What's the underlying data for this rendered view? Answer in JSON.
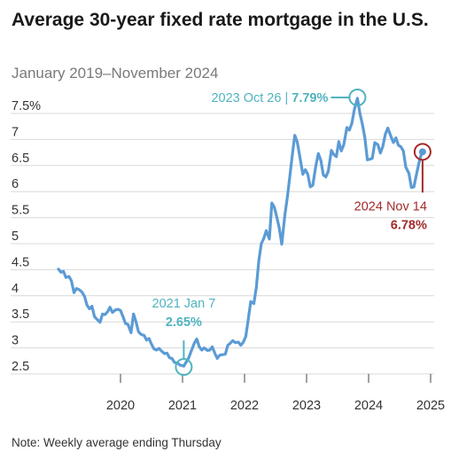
{
  "chart_data": {
    "type": "line",
    "title": "Average 30-year fixed rate mortgage in the U.S.",
    "subtitle": "January 2019–November 2024",
    "note": "Note: Weekly average ending Thursday",
    "y_ticks": [
      "7.5%",
      "7",
      "6.5",
      "6",
      "5.5",
      "5",
      "4.5",
      "4",
      "3.5",
      "3",
      "2.5"
    ],
    "y_tick_values": [
      7.5,
      7,
      6.5,
      6,
      5.5,
      5,
      4.5,
      4,
      3.5,
      3,
      2.5
    ],
    "x_ticks": [
      "2020",
      "2021",
      "2022",
      "2023",
      "2024",
      "2025"
    ],
    "x_tick_values": [
      2020,
      2021,
      2022,
      2023,
      2024,
      2025
    ],
    "xlim": [
      2019.0,
      2025.0
    ],
    "ylim": [
      2.5,
      7.6
    ],
    "grid": true,
    "colors": {
      "line": "#5b9bd5",
      "low_high": "#4fb3bf",
      "latest": "#a52a2a",
      "grid": "#d9d9d9"
    },
    "annotations": {
      "high": {
        "date": "2023 Oct 26",
        "sep": " | ",
        "value": "7.79%",
        "x": 2023.82,
        "y": 7.79
      },
      "low": {
        "date": "2021 Jan 7",
        "value": "2.65%",
        "x": 2021.02,
        "y": 2.65
      },
      "latest": {
        "date": "2024 Nov 14",
        "value": "6.78%",
        "x": 2024.87,
        "y": 6.78
      }
    },
    "series": [
      {
        "values": [
          [
            2019.0,
            4.51
          ],
          [
            2019.04,
            4.45
          ],
          [
            2019.08,
            4.47
          ],
          [
            2019.12,
            4.35
          ],
          [
            2019.17,
            4.37
          ],
          [
            2019.21,
            4.28
          ],
          [
            2019.25,
            4.06
          ],
          [
            2019.29,
            4.14
          ],
          [
            2019.33,
            4.12
          ],
          [
            2019.38,
            4.07
          ],
          [
            2019.42,
            3.99
          ],
          [
            2019.46,
            3.82
          ],
          [
            2019.5,
            3.75
          ],
          [
            2019.54,
            3.8
          ],
          [
            2019.58,
            3.6
          ],
          [
            2019.62,
            3.55
          ],
          [
            2019.67,
            3.49
          ],
          [
            2019.71,
            3.65
          ],
          [
            2019.75,
            3.64
          ],
          [
            2019.79,
            3.69
          ],
          [
            2019.83,
            3.78
          ],
          [
            2019.87,
            3.68
          ],
          [
            2019.92,
            3.73
          ],
          [
            2019.96,
            3.74
          ],
          [
            2020.0,
            3.72
          ],
          [
            2020.04,
            3.6
          ],
          [
            2020.08,
            3.47
          ],
          [
            2020.12,
            3.45
          ],
          [
            2020.17,
            3.29
          ],
          [
            2020.21,
            3.65
          ],
          [
            2020.25,
            3.5
          ],
          [
            2020.29,
            3.31
          ],
          [
            2020.33,
            3.26
          ],
          [
            2020.38,
            3.24
          ],
          [
            2020.42,
            3.15
          ],
          [
            2020.46,
            3.18
          ],
          [
            2020.5,
            3.07
          ],
          [
            2020.54,
            2.98
          ],
          [
            2020.58,
            2.96
          ],
          [
            2020.62,
            2.99
          ],
          [
            2020.67,
            2.93
          ],
          [
            2020.71,
            2.89
          ],
          [
            2020.75,
            2.9
          ],
          [
            2020.79,
            2.81
          ],
          [
            2020.83,
            2.8
          ],
          [
            2020.87,
            2.72
          ],
          [
            2020.92,
            2.71
          ],
          [
            2020.96,
            2.67
          ],
          [
            2021.02,
            2.65
          ],
          [
            2021.06,
            2.73
          ],
          [
            2021.1,
            2.81
          ],
          [
            2021.15,
            2.97
          ],
          [
            2021.19,
            3.09
          ],
          [
            2021.23,
            3.17
          ],
          [
            2021.27,
            3.02
          ],
          [
            2021.31,
            2.96
          ],
          [
            2021.35,
            3.0
          ],
          [
            2021.4,
            2.95
          ],
          [
            2021.44,
            2.96
          ],
          [
            2021.48,
            3.02
          ],
          [
            2021.52,
            2.9
          ],
          [
            2021.56,
            2.8
          ],
          [
            2021.6,
            2.86
          ],
          [
            2021.65,
            2.87
          ],
          [
            2021.69,
            2.88
          ],
          [
            2021.73,
            3.05
          ],
          [
            2021.77,
            3.09
          ],
          [
            2021.81,
            3.14
          ],
          [
            2021.85,
            3.1
          ],
          [
            2021.9,
            3.11
          ],
          [
            2021.94,
            3.05
          ],
          [
            2021.98,
            3.11
          ],
          [
            2022.02,
            3.22
          ],
          [
            2022.06,
            3.55
          ],
          [
            2022.1,
            3.89
          ],
          [
            2022.15,
            3.85
          ],
          [
            2022.19,
            4.16
          ],
          [
            2022.23,
            4.67
          ],
          [
            2022.27,
            5.0
          ],
          [
            2022.31,
            5.1
          ],
          [
            2022.35,
            5.25
          ],
          [
            2022.4,
            5.09
          ],
          [
            2022.44,
            5.78
          ],
          [
            2022.48,
            5.7
          ],
          [
            2022.52,
            5.51
          ],
          [
            2022.56,
            5.3
          ],
          [
            2022.6,
            4.99
          ],
          [
            2022.65,
            5.55
          ],
          [
            2022.69,
            5.89
          ],
          [
            2022.73,
            6.29
          ],
          [
            2022.77,
            6.7
          ],
          [
            2022.81,
            7.08
          ],
          [
            2022.85,
            6.95
          ],
          [
            2022.9,
            6.61
          ],
          [
            2022.94,
            6.33
          ],
          [
            2022.98,
            6.42
          ],
          [
            2023.02,
            6.33
          ],
          [
            2023.06,
            6.09
          ],
          [
            2023.1,
            6.12
          ],
          [
            2023.15,
            6.5
          ],
          [
            2023.19,
            6.73
          ],
          [
            2023.23,
            6.6
          ],
          [
            2023.27,
            6.32
          ],
          [
            2023.31,
            6.28
          ],
          [
            2023.35,
            6.39
          ],
          [
            2023.4,
            6.79
          ],
          [
            2023.44,
            6.71
          ],
          [
            2023.48,
            6.67
          ],
          [
            2023.52,
            6.96
          ],
          [
            2023.56,
            6.78
          ],
          [
            2023.6,
            6.9
          ],
          [
            2023.65,
            7.23
          ],
          [
            2023.69,
            7.18
          ],
          [
            2023.73,
            7.31
          ],
          [
            2023.77,
            7.57
          ],
          [
            2023.82,
            7.79
          ],
          [
            2023.86,
            7.5
          ],
          [
            2023.9,
            7.29
          ],
          [
            2023.94,
            7.03
          ],
          [
            2023.98,
            6.61
          ],
          [
            2024.02,
            6.62
          ],
          [
            2024.06,
            6.64
          ],
          [
            2024.1,
            6.94
          ],
          [
            2024.15,
            6.9
          ],
          [
            2024.19,
            6.74
          ],
          [
            2024.23,
            6.87
          ],
          [
            2024.27,
            7.1
          ],
          [
            2024.31,
            7.22
          ],
          [
            2024.35,
            7.09
          ],
          [
            2024.4,
            6.94
          ],
          [
            2024.44,
            7.03
          ],
          [
            2024.48,
            6.89
          ],
          [
            2024.52,
            6.86
          ],
          [
            2024.56,
            6.78
          ],
          [
            2024.6,
            6.47
          ],
          [
            2024.65,
            6.35
          ],
          [
            2024.69,
            6.08
          ],
          [
            2024.73,
            6.09
          ],
          [
            2024.77,
            6.32
          ],
          [
            2024.81,
            6.54
          ],
          [
            2024.85,
            6.72
          ],
          [
            2024.87,
            6.78
          ]
        ]
      }
    ]
  }
}
